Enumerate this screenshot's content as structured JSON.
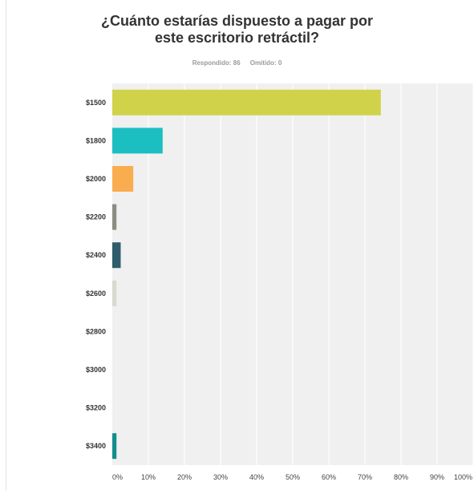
{
  "chart_data": {
    "type": "bar",
    "orientation": "horizontal",
    "title": "¿Cuánto estarías dispuesto a pagar por este escritorio retráctil?",
    "title_lines": [
      "¿Cuánto estarías dispuesto a pagar por",
      "este escritorio retráctil?"
    ],
    "answered_label": "Respondido: 86",
    "skipped_label": "Omitido: 0",
    "categories": [
      "$1500",
      "$1800",
      "$2000",
      "$2200",
      "$2400",
      "$2600",
      "$2800",
      "$3000",
      "$3200",
      "$3400"
    ],
    "values": [
      74.4,
      13.95,
      5.81,
      1.16,
      2.33,
      1.16,
      0,
      0,
      0,
      1.16
    ],
    "colors": [
      "#d0d34a",
      "#1bbfc1",
      "#f9ad4e",
      "#8b8c83",
      "#2f5d6b",
      "#d9d9cf",
      "#aaaaaa",
      "#aaaaaa",
      "#aaaaaa",
      "#148d8e"
    ],
    "xlim": [
      0,
      100
    ],
    "x_ticks": [
      0,
      10,
      20,
      30,
      40,
      50,
      60,
      70,
      80,
      90,
      100
    ],
    "x_tick_labels": [
      "0%",
      "10%",
      "20%",
      "30%",
      "40%",
      "50%",
      "60%",
      "70%",
      "80%",
      "90%",
      "100%"
    ],
    "grid": true,
    "plot_background": "#f0f0f0",
    "grid_color": "#ffffff",
    "xlabel": "",
    "ylabel": ""
  }
}
